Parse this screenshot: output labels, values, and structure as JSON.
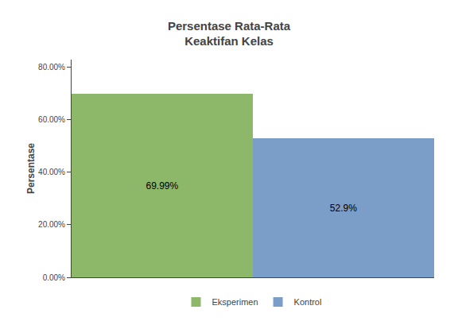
{
  "chart_data": {
    "type": "bar",
    "title": "Persentase Rata-Rata\nKeaktifan Kelas",
    "ylabel": "Persentase",
    "categories": [
      "Eksperimen",
      "Kontrol"
    ],
    "values": [
      69.99,
      52.9
    ],
    "value_labels": [
      "69.99%",
      "52.9%"
    ],
    "colors": [
      "#8DB86A",
      "#7B9EC8"
    ],
    "data_labels": true,
    "ylim": [
      0,
      83
    ],
    "yticks": [
      {
        "value": 0,
        "label": "0.00%"
      },
      {
        "value": 20,
        "label": "20.00%"
      },
      {
        "value": 40,
        "label": "40.00%"
      },
      {
        "value": 60,
        "label": "60.00%"
      },
      {
        "value": 80,
        "label": "80.00%"
      }
    ],
    "grid": false,
    "legend": "bottom",
    "tick_labels": "y"
  }
}
